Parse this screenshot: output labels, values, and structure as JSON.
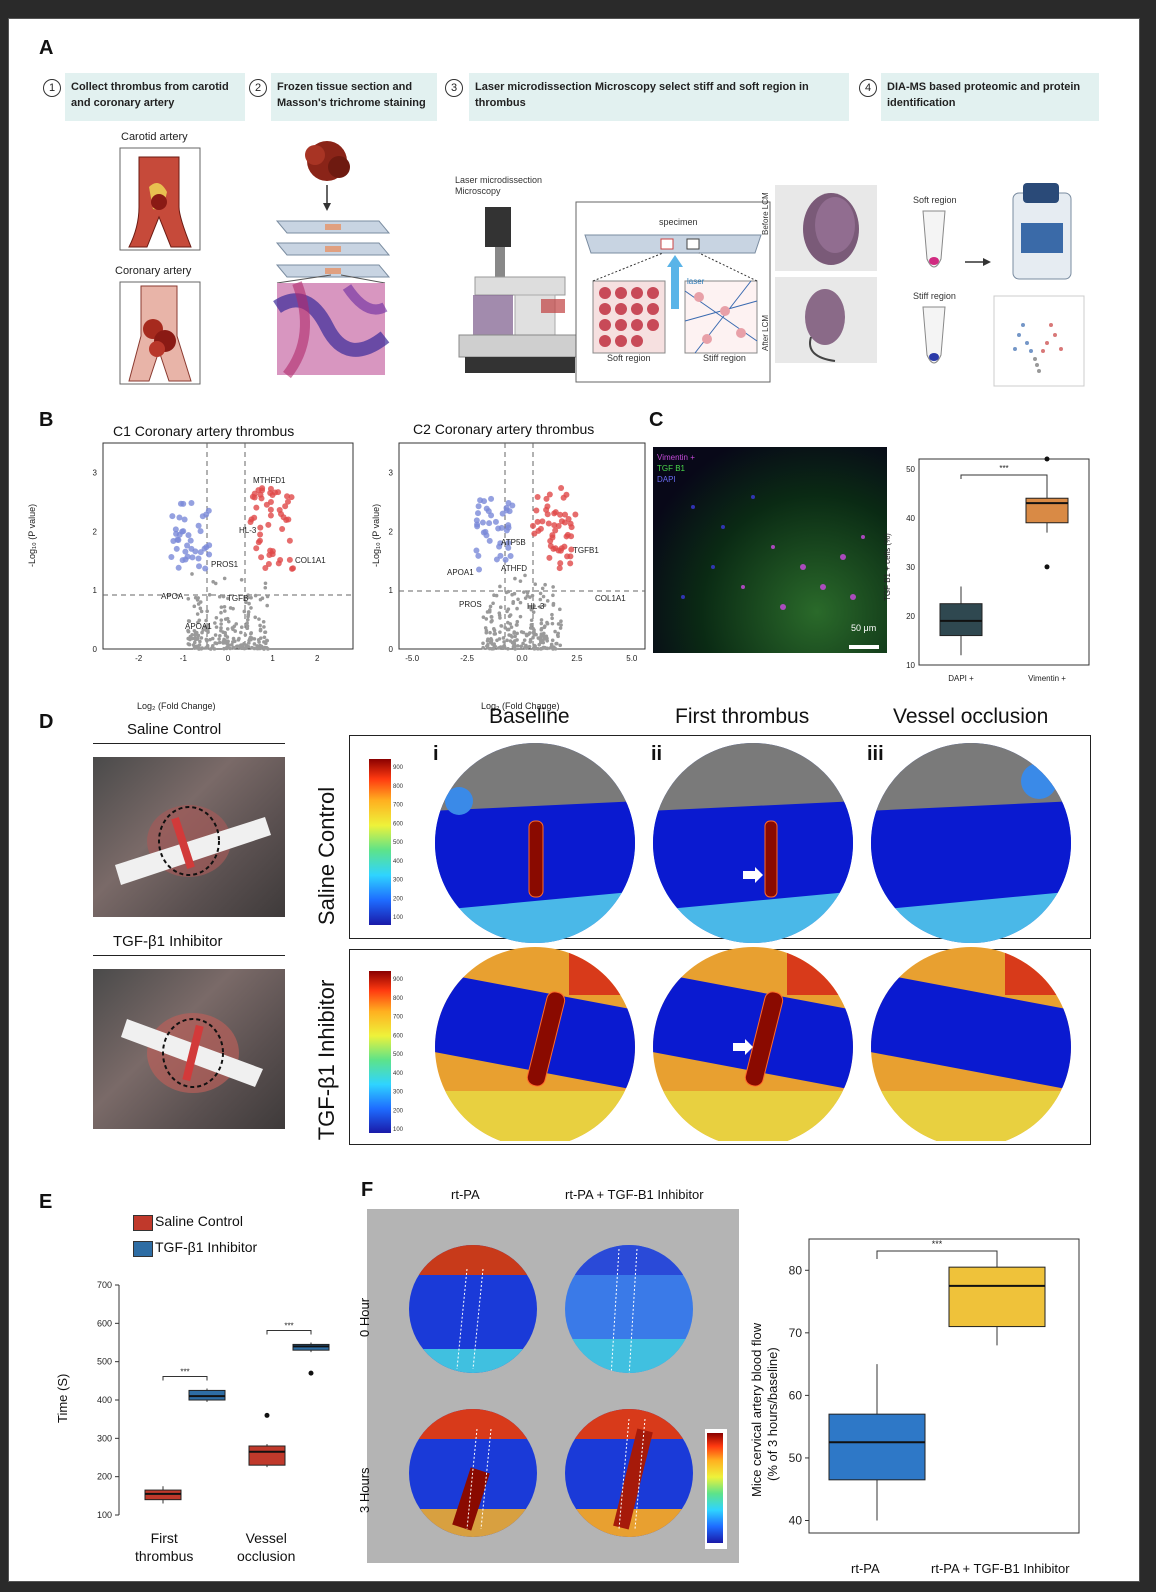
{
  "panel_a": {
    "label": "A",
    "steps": [
      {
        "num": "1",
        "text": "Collect thrombus from carotid and coronary artery"
      },
      {
        "num": "2",
        "text": "Frozen tissue section and Masson's trichrome staining"
      },
      {
        "num": "3",
        "text": "Laser microdissection Microscopy select  stiff and soft region in thrombus"
      },
      {
        "num": "4",
        "text": "DIA-MS based proteomic and protein identification"
      }
    ],
    "carotid_label": "Carotid artery",
    "coronary_label": "Coronary artery",
    "microscope_label": "Laser microdissection Microscopy",
    "specimen_label": "specimen",
    "laser_label": "laser",
    "soft_region_label": "Soft region",
    "stiff_region_label": "Stiff region",
    "before_lcm": "Before LCM",
    "after_lcm": "After LCM",
    "soft_region_tube": "Soft region",
    "stiff_region_tube": "Stiff  region"
  },
  "panel_b": {
    "label": "B",
    "plots": [
      {
        "title": "C1 Coronary artery thrombus",
        "xlabel": "Log₂ (Fold Change)",
        "ylabel": "-Log₁₀ (P value)",
        "xticks": [
          "-2",
          "-1",
          "0",
          "1",
          "2"
        ],
        "yticks": [
          "0",
          "1",
          "2",
          "3"
        ],
        "genes": [
          "MTHFD1",
          "HL-3",
          "COL1A1",
          "PROS1",
          "APOA",
          "TGFB",
          "APOA1"
        ]
      },
      {
        "title": "C2 Coronary artery thrombus",
        "xlabel": "Log₂ (Fold Change)",
        "ylabel": "-Log₁₀ (P value)",
        "xticks": [
          "-5.0",
          "-2.5",
          "0.0",
          "2.5",
          "5.0"
        ],
        "yticks": [
          "0",
          "1",
          "2",
          "3"
        ],
        "genes": [
          "ATP5B",
          "TGFB1",
          "APOA1",
          "ATHFD",
          "PROS",
          "HL-3",
          "COL1A1"
        ]
      }
    ]
  },
  "panel_c": {
    "label": "C",
    "legend": [
      "Vimentin +",
      "TGF B1",
      "DAPI"
    ],
    "scalebar": "50 μm",
    "ylabel": "TGF B1 + cells (%)",
    "yticks": [
      "10",
      "20",
      "30",
      "40",
      "50"
    ],
    "categories": [
      "DAPI +",
      "Vimentin +"
    ],
    "significance": "***",
    "colors": {
      "dapi": "#2f4850",
      "vimentin": "#d98a45"
    }
  },
  "panel_d": {
    "label": "D",
    "photo_labels": [
      "Saline Control",
      "TGF-β1 Inhibitor"
    ],
    "col_titles": [
      "Baseline",
      "First thrombus",
      "Vessel occlusion"
    ],
    "col_roman": [
      "i",
      "ii",
      "iii"
    ],
    "row_titles": [
      "Saline Control",
      "TGF-β1 Inhibitor"
    ],
    "colorbar_ticks": [
      "900",
      "800",
      "700",
      "600",
      "500",
      "400",
      "300",
      "200",
      "100"
    ]
  },
  "panel_e": {
    "label": "E",
    "legend": [
      "Saline Control",
      "TGF-β1 Inhibitor"
    ],
    "ylabel": "Time (S)",
    "categories": [
      "First\nthrombus",
      "Vessel\nocclusion"
    ],
    "cat1_a": "First",
    "cat1_b": "thrombus",
    "cat2_a": "Vessel",
    "cat2_b": "occlusion",
    "significance": "***",
    "colors": {
      "saline": "#c0392b",
      "inhibitor": "#2e6da4"
    }
  },
  "panel_f": {
    "label": "F",
    "col_titles": [
      "rt-PA",
      "rt-PA + TGF-B1 Inhibitor"
    ],
    "row_titles": [
      "0 Hour",
      "3 Hours"
    ],
    "ylabel": "Mice cervical artery blood flow (% of 3 hours/baseline)",
    "ylabel_a": "Mice cervical artery blood flow",
    "ylabel_b": "(% of 3 hours/baseline)",
    "categories": [
      "rt-PA",
      "rt-PA + TGF-B1 Inhibitor"
    ],
    "significance": "***",
    "colors": {
      "rtpa": "#2e78c7",
      "combo": "#efc23a"
    }
  },
  "chart_data": [
    {
      "type": "box",
      "panel": "C",
      "ylabel": "TGF B1 + cells (%)",
      "ylim": [
        10,
        52
      ],
      "categories": [
        "DAPI +",
        "Vimentin +"
      ],
      "boxes": [
        {
          "name": "DAPI +",
          "min": 12,
          "q1": 16,
          "median": 19,
          "q3": 22.5,
          "max": 26
        },
        {
          "name": "Vimentin +",
          "min": 37,
          "q1": 39,
          "median": 43,
          "q3": 44,
          "max": 48,
          "outliers": [
            30,
            52
          ]
        }
      ]
    },
    {
      "type": "box",
      "panel": "E",
      "ylabel": "Time (S)",
      "ylim": [
        100,
        700
      ],
      "yticks": [
        100,
        200,
        300,
        400,
        500,
        600,
        700
      ],
      "categories": [
        "First thrombus",
        "Vessel occlusion"
      ],
      "series": [
        {
          "name": "Saline Control",
          "boxes": [
            {
              "min": 130,
              "q1": 140,
              "median": 155,
              "q3": 165,
              "max": 175
            },
            {
              "min": 225,
              "q1": 230,
              "median": 265,
              "q3": 280,
              "max": 285,
              "outliers": [
                360
              ]
            }
          ]
        },
        {
          "name": "TGF-β1 Inhibitor",
          "boxes": [
            {
              "min": 395,
              "q1": 400,
              "median": 410,
              "q3": 425,
              "max": 430
            },
            {
              "min": 525,
              "q1": 530,
              "median": 540,
              "q3": 545,
              "max": 550,
              "outliers": [
                470
              ]
            }
          ]
        }
      ]
    },
    {
      "type": "box",
      "panel": "F",
      "ylabel": "Mice cervical artery blood flow (% of 3 hours/baseline)",
      "ylim": [
        38,
        85
      ],
      "yticks": [
        40,
        50,
        60,
        70,
        80
      ],
      "categories": [
        "rt-PA",
        "rt-PA + TGF-B1 Inhibitor"
      ],
      "boxes": [
        {
          "name": "rt-PA",
          "min": 40,
          "q1": 46.5,
          "median": 52.5,
          "q3": 57,
          "max": 65
        },
        {
          "name": "rt-PA + TGF-B1 Inhibitor",
          "min": 68,
          "q1": 71,
          "median": 77.5,
          "q3": 80.5,
          "max": 83
        }
      ]
    }
  ]
}
